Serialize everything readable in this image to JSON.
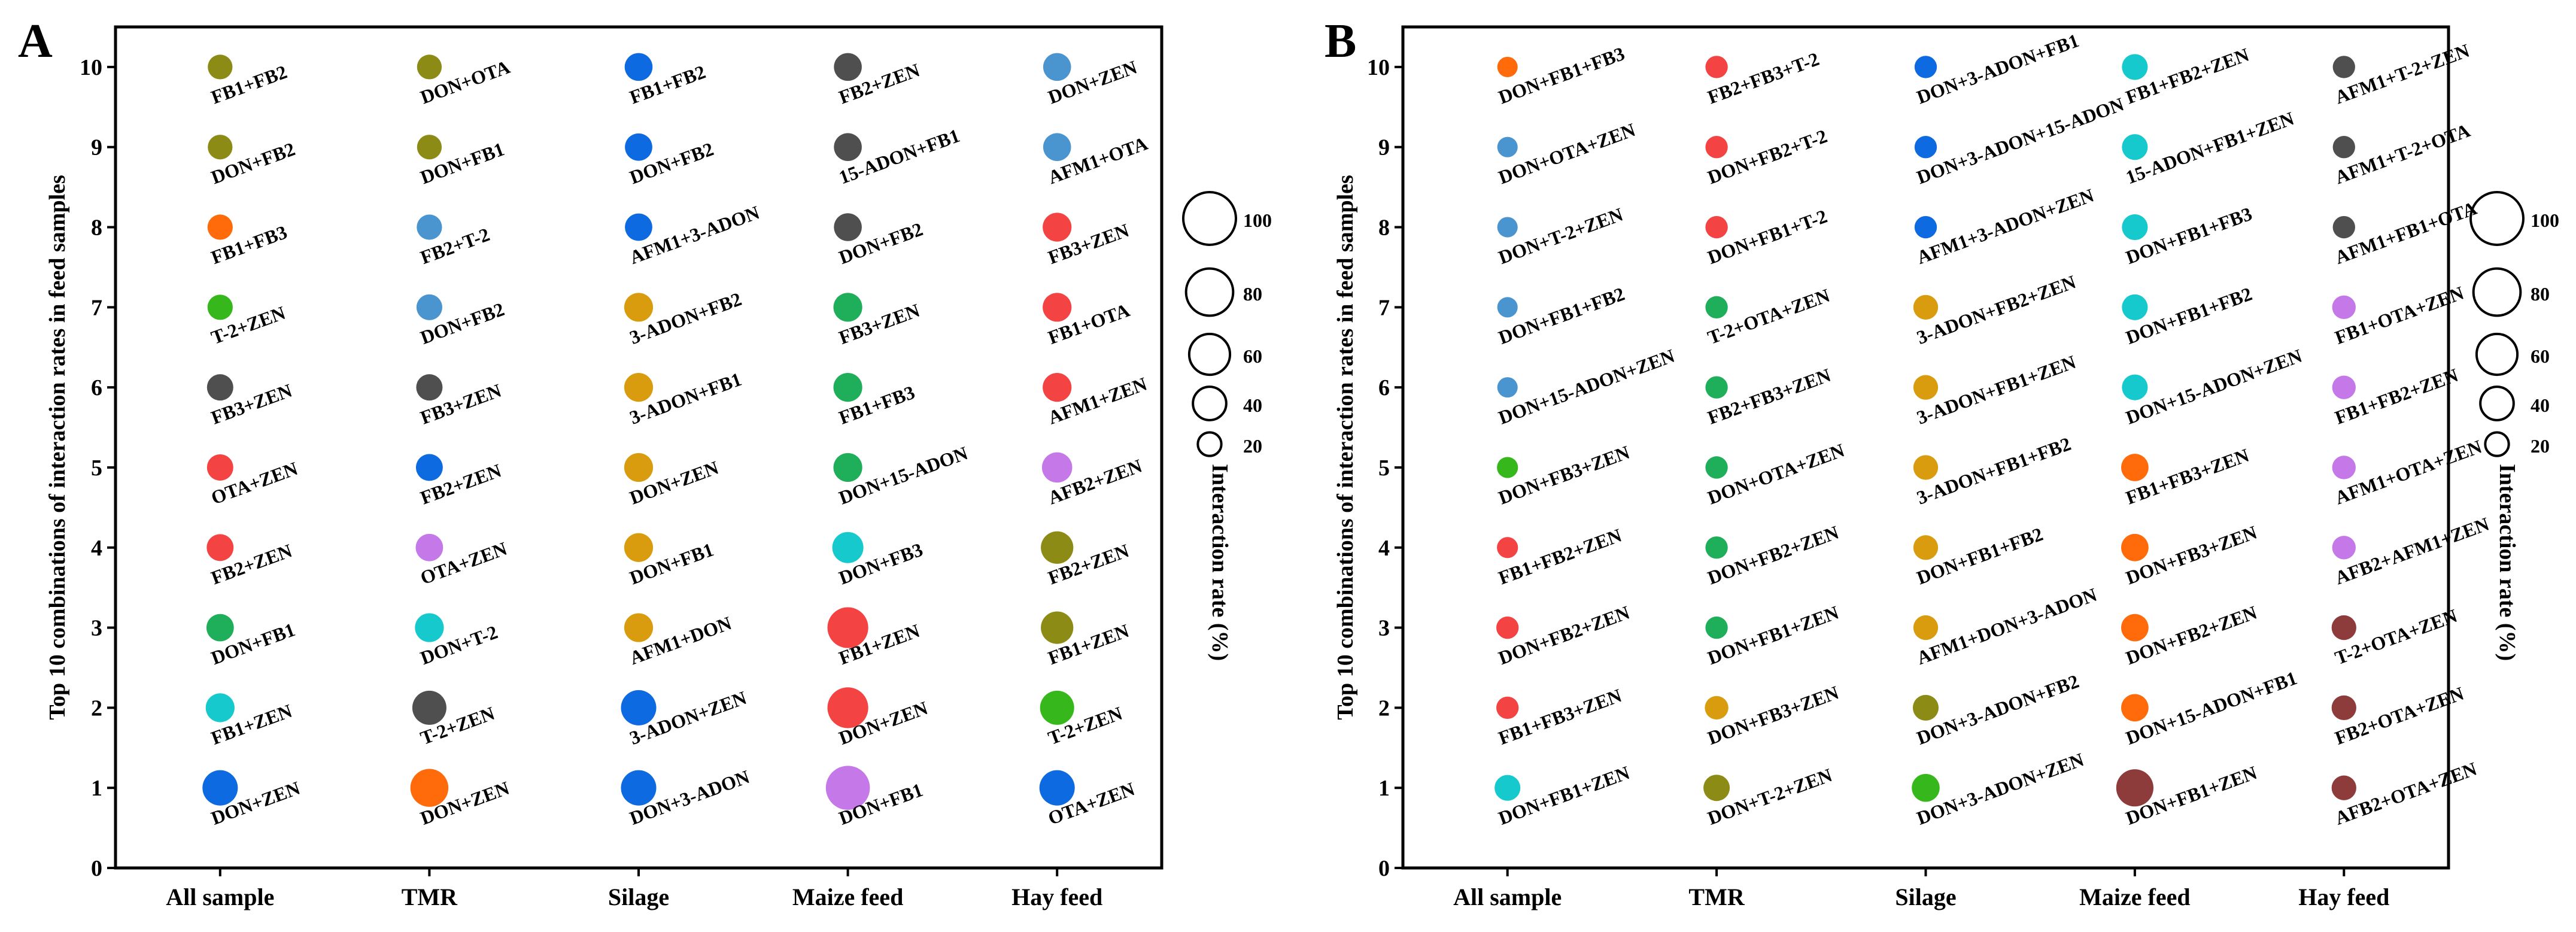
{
  "colors": {
    "olive": "#8b8b16",
    "blue": "#0e6ae0",
    "orange": "#ff6a0a",
    "green": "#1fae5a",
    "red": "#f44343",
    "lime": "#36b81c",
    "gray": "#4f4f4f",
    "purple": "#c578e8",
    "cyan": "#16c9cd",
    "gold": "#d99c0e",
    "steel": "#4a94cf",
    "brown": "#8e3b3b",
    "axis": "#000000"
  },
  "chart_data": [
    {
      "panel": "A",
      "type": "scatter",
      "subtype": "bubble",
      "ylabel": "Top 10 combinations of interaction rates in feed samples",
      "categories": [
        "All sample",
        "TMR",
        "Silage",
        "Maize feed",
        "Hay feed"
      ],
      "yticks": [
        "0",
        "1",
        "2",
        "3",
        "4",
        "5",
        "6",
        "7",
        "8",
        "9",
        "10"
      ],
      "ylim": [
        0,
        10.5
      ],
      "series": [
        {
          "name": "All sample",
          "points": [
            {
              "rank": 10,
              "label": "FB1+FB2",
              "rate": 22,
              "color": "olive"
            },
            {
              "rank": 9,
              "label": "DON+FB2",
              "rate": 22,
              "color": "olive"
            },
            {
              "rank": 8,
              "label": "FB1+FB3",
              "rate": 23,
              "color": "orange"
            },
            {
              "rank": 7,
              "label": "T-2+ZEN",
              "rate": 23,
              "color": "lime"
            },
            {
              "rank": 6,
              "label": "FB3+ZEN",
              "rate": 25,
              "color": "gray"
            },
            {
              "rank": 5,
              "label": "OTA+ZEN",
              "rate": 25,
              "color": "red"
            },
            {
              "rank": 4,
              "label": "FB2+ZEN",
              "rate": 26,
              "color": "red"
            },
            {
              "rank": 3,
              "label": "DON+FB1",
              "rate": 27,
              "color": "green"
            },
            {
              "rank": 2,
              "label": "FB1+ZEN",
              "rate": 30,
              "color": "cyan"
            },
            {
              "rank": 1,
              "label": "DON+ZEN",
              "rate": 45,
              "color": "blue"
            }
          ]
        },
        {
          "name": "TMR",
          "points": [
            {
              "rank": 10,
              "label": "DON+OTA",
              "rate": 22,
              "color": "olive"
            },
            {
              "rank": 9,
              "label": "DON+FB1",
              "rate": 22,
              "color": "olive"
            },
            {
              "rank": 8,
              "label": "FB2+T-2",
              "rate": 23,
              "color": "steel"
            },
            {
              "rank": 7,
              "label": "DON+FB2",
              "rate": 24,
              "color": "steel"
            },
            {
              "rank": 6,
              "label": "FB3+ZEN",
              "rate": 25,
              "color": "gray"
            },
            {
              "rank": 5,
              "label": "FB2+ZEN",
              "rate": 26,
              "color": "blue"
            },
            {
              "rank": 4,
              "label": "OTA+ZEN",
              "rate": 27,
              "color": "purple"
            },
            {
              "rank": 3,
              "label": "DON+T-2",
              "rate": 30,
              "color": "cyan"
            },
            {
              "rank": 2,
              "label": "T-2+ZEN",
              "rate": 42,
              "color": "gray"
            },
            {
              "rank": 1,
              "label": "DON+ZEN",
              "rate": 52,
              "color": "orange"
            }
          ]
        },
        {
          "name": "Silage",
          "points": [
            {
              "rank": 10,
              "label": "FB1+FB2",
              "rate": 28,
              "color": "blue"
            },
            {
              "rank": 9,
              "label": "DON+FB2",
              "rate": 27,
              "color": "blue"
            },
            {
              "rank": 8,
              "label": "AFM1+3-ADON",
              "rate": 27,
              "color": "blue"
            },
            {
              "rank": 7,
              "label": "3-ADON+FB2",
              "rate": 30,
              "color": "gold"
            },
            {
              "rank": 6,
              "label": "3-ADON+FB1",
              "rate": 30,
              "color": "gold"
            },
            {
              "rank": 5,
              "label": "DON+ZEN",
              "rate": 30,
              "color": "gold"
            },
            {
              "rank": 4,
              "label": "DON+FB1",
              "rate": 30,
              "color": "gold"
            },
            {
              "rank": 3,
              "label": "AFM1+DON",
              "rate": 30,
              "color": "gold"
            },
            {
              "rank": 2,
              "label": "3-ADON+ZEN",
              "rate": 45,
              "color": "blue"
            },
            {
              "rank": 1,
              "label": "DON+3-ADON",
              "rate": 45,
              "color": "blue"
            }
          ]
        },
        {
          "name": "Maize feed",
          "points": [
            {
              "rank": 10,
              "label": "FB2+ZEN",
              "rate": 28,
              "color": "gray"
            },
            {
              "rank": 9,
              "label": "15-ADON+FB1",
              "rate": 28,
              "color": "gray"
            },
            {
              "rank": 8,
              "label": "DON+FB2",
              "rate": 28,
              "color": "gray"
            },
            {
              "rank": 7,
              "label": "FB3+ZEN",
              "rate": 30,
              "color": "green"
            },
            {
              "rank": 6,
              "label": "FB1+FB3",
              "rate": 30,
              "color": "green"
            },
            {
              "rank": 5,
              "label": "DON+15-ADON",
              "rate": 30,
              "color": "green"
            },
            {
              "rank": 4,
              "label": "DON+FB3",
              "rate": 35,
              "color": "cyan"
            },
            {
              "rank": 3,
              "label": "FB1+ZEN",
              "rate": 60,
              "color": "red"
            },
            {
              "rank": 2,
              "label": "DON+ZEN",
              "rate": 60,
              "color": "red"
            },
            {
              "rank": 1,
              "label": "DON+FB1",
              "rate": 70,
              "color": "purple"
            }
          ]
        },
        {
          "name": "Hay feed",
          "points": [
            {
              "rank": 10,
              "label": "DON+ZEN",
              "rate": 28,
              "color": "steel"
            },
            {
              "rank": 9,
              "label": "AFM1+OTA",
              "rate": 28,
              "color": "steel"
            },
            {
              "rank": 8,
              "label": "FB3+ZEN",
              "rate": 30,
              "color": "red"
            },
            {
              "rank": 7,
              "label": "FB1+OTA",
              "rate": 30,
              "color": "red"
            },
            {
              "rank": 6,
              "label": "AFM1+ZEN",
              "rate": 30,
              "color": "red"
            },
            {
              "rank": 5,
              "label": "AFB2+ZEN",
              "rate": 33,
              "color": "purple"
            },
            {
              "rank": 4,
              "label": "FB2+ZEN",
              "rate": 38,
              "color": "olive"
            },
            {
              "rank": 3,
              "label": "FB1+ZEN",
              "rate": 38,
              "color": "olive"
            },
            {
              "rank": 2,
              "label": "T-2+ZEN",
              "rate": 42,
              "color": "lime"
            },
            {
              "rank": 1,
              "label": "OTA+ZEN",
              "rate": 45,
              "color": "blue"
            }
          ]
        }
      ],
      "size_legend": {
        "title": "Interaction rate (%)",
        "values": [
          100,
          80,
          60,
          40,
          20
        ]
      }
    },
    {
      "panel": "B",
      "type": "scatter",
      "subtype": "bubble",
      "ylabel": "Top 10 combinations of interaction rates in feed samples",
      "categories": [
        "All sample",
        "TMR",
        "Silage",
        "Maize feed",
        "Hay feed"
      ],
      "yticks": [
        "0",
        "1",
        "2",
        "3",
        "4",
        "5",
        "6",
        "7",
        "8",
        "9",
        "10"
      ],
      "ylim": [
        0,
        10.5
      ],
      "series": [
        {
          "name": "All sample",
          "points": [
            {
              "rank": 10,
              "label": "DON+FB1+FB3",
              "rate": 15,
              "color": "orange"
            },
            {
              "rank": 9,
              "label": "DON+OTA+ZEN",
              "rate": 15,
              "color": "steel"
            },
            {
              "rank": 8,
              "label": "DON+T-2+ZEN",
              "rate": 15,
              "color": "steel"
            },
            {
              "rank": 7,
              "label": "DON+FB1+FB2",
              "rate": 15,
              "color": "steel"
            },
            {
              "rank": 6,
              "label": "DON+15-ADON+ZEN",
              "rate": 15,
              "color": "steel"
            },
            {
              "rank": 5,
              "label": "DON+FB3+ZEN",
              "rate": 16,
              "color": "lime"
            },
            {
              "rank": 4,
              "label": "FB1+FB2+ZEN",
              "rate": 16,
              "color": "red"
            },
            {
              "rank": 3,
              "label": "DON+FB2+ZEN",
              "rate": 18,
              "color": "red"
            },
            {
              "rank": 2,
              "label": "FB1+FB3+ZEN",
              "rate": 18,
              "color": "red"
            },
            {
              "rank": 1,
              "label": "DON+FB1+ZEN",
              "rate": 24,
              "color": "cyan"
            }
          ]
        },
        {
          "name": "TMR",
          "points": [
            {
              "rank": 10,
              "label": "FB2+FB3+T-2",
              "rate": 18,
              "color": "red"
            },
            {
              "rank": 9,
              "label": "DON+FB2+T-2",
              "rate": 18,
              "color": "red"
            },
            {
              "rank": 8,
              "label": "DON+FB1+T-2",
              "rate": 18,
              "color": "red"
            },
            {
              "rank": 7,
              "label": "T-2+OTA+ZEN",
              "rate": 18,
              "color": "green"
            },
            {
              "rank": 6,
              "label": "FB2+FB3+ZEN",
              "rate": 18,
              "color": "green"
            },
            {
              "rank": 5,
              "label": "DON+OTA+ZEN",
              "rate": 18,
              "color": "green"
            },
            {
              "rank": 4,
              "label": "DON+FB2+ZEN",
              "rate": 18,
              "color": "green"
            },
            {
              "rank": 3,
              "label": "DON+FB1+ZEN",
              "rate": 18,
              "color": "green"
            },
            {
              "rank": 2,
              "label": "DON+FB3+ZEN",
              "rate": 20,
              "color": "gold"
            },
            {
              "rank": 1,
              "label": "DON+T-2+ZEN",
              "rate": 25,
              "color": "olive"
            }
          ]
        },
        {
          "name": "Silage",
          "points": [
            {
              "rank": 10,
              "label": "DON+3-ADON+FB1",
              "rate": 18,
              "color": "blue"
            },
            {
              "rank": 9,
              "label": "DON+3-ADON+15-ADON",
              "rate": 18,
              "color": "blue"
            },
            {
              "rank": 8,
              "label": "AFM1+3-ADON+ZEN",
              "rate": 18,
              "color": "blue"
            },
            {
              "rank": 7,
              "label": "3-ADON+FB2+ZEN",
              "rate": 22,
              "color": "gold"
            },
            {
              "rank": 6,
              "label": "3-ADON+FB1+ZEN",
              "rate": 22,
              "color": "gold"
            },
            {
              "rank": 5,
              "label": "3-ADON+FB1+FB2",
              "rate": 22,
              "color": "gold"
            },
            {
              "rank": 4,
              "label": "DON+FB1+FB2",
              "rate": 22,
              "color": "gold"
            },
            {
              "rank": 3,
              "label": "AFM1+DON+3-ADON",
              "rate": 22,
              "color": "gold"
            },
            {
              "rank": 2,
              "label": "DON+3-ADON+FB2",
              "rate": 24,
              "color": "olive"
            },
            {
              "rank": 1,
              "label": "DON+3-ADON+ZEN",
              "rate": 28,
              "color": "lime"
            }
          ]
        },
        {
          "name": "Maize feed",
          "points": [
            {
              "rank": 10,
              "label": "FB1+FB2+ZEN",
              "rate": 24,
              "color": "cyan"
            },
            {
              "rank": 9,
              "label": "15-ADON+FB1+ZEN",
              "rate": 24,
              "color": "cyan"
            },
            {
              "rank": 8,
              "label": "DON+FB1+FB3",
              "rate": 24,
              "color": "cyan"
            },
            {
              "rank": 7,
              "label": "DON+FB1+FB2",
              "rate": 24,
              "color": "cyan"
            },
            {
              "rank": 6,
              "label": "DON+15-ADON+ZEN",
              "rate": 24,
              "color": "cyan"
            },
            {
              "rank": 5,
              "label": "FB1+FB3+ZEN",
              "rate": 27,
              "color": "orange"
            },
            {
              "rank": 4,
              "label": "DON+FB3+ZEN",
              "rate": 27,
              "color": "orange"
            },
            {
              "rank": 3,
              "label": "DON+FB2+ZEN",
              "rate": 27,
              "color": "orange"
            },
            {
              "rank": 2,
              "label": "DON+15-ADON+FB1",
              "rate": 27,
              "color": "orange"
            },
            {
              "rank": 1,
              "label": "DON+FB1+ZEN",
              "rate": 50,
              "color": "brown"
            }
          ]
        },
        {
          "name": "Hay feed",
          "points": [
            {
              "rank": 10,
              "label": "AFM1+T-2+ZEN",
              "rate": 18,
              "color": "gray"
            },
            {
              "rank": 9,
              "label": "AFM1+T-2+OTA",
              "rate": 18,
              "color": "gray"
            },
            {
              "rank": 8,
              "label": "AFM1+FB1+OTA",
              "rate": 18,
              "color": "gray"
            },
            {
              "rank": 7,
              "label": "FB1+OTA+ZEN",
              "rate": 20,
              "color": "purple"
            },
            {
              "rank": 6,
              "label": "FB1+FB2+ZEN",
              "rate": 20,
              "color": "purple"
            },
            {
              "rank": 5,
              "label": "AFM1+OTA+ZEN",
              "rate": 20,
              "color": "purple"
            },
            {
              "rank": 4,
              "label": "AFB2+AFM1+ZEN",
              "rate": 20,
              "color": "purple"
            },
            {
              "rank": 3,
              "label": "T-2+OTA+ZEN",
              "rate": 22,
              "color": "brown"
            },
            {
              "rank": 2,
              "label": "FB2+OTA+ZEN",
              "rate": 22,
              "color": "brown"
            },
            {
              "rank": 1,
              "label": "AFB2+OTA+ZEN",
              "rate": 22,
              "color": "brown"
            }
          ]
        }
      ],
      "size_legend": {
        "title": "Interaction rate (%)",
        "values": [
          100,
          80,
          60,
          40,
          20
        ]
      }
    }
  ]
}
